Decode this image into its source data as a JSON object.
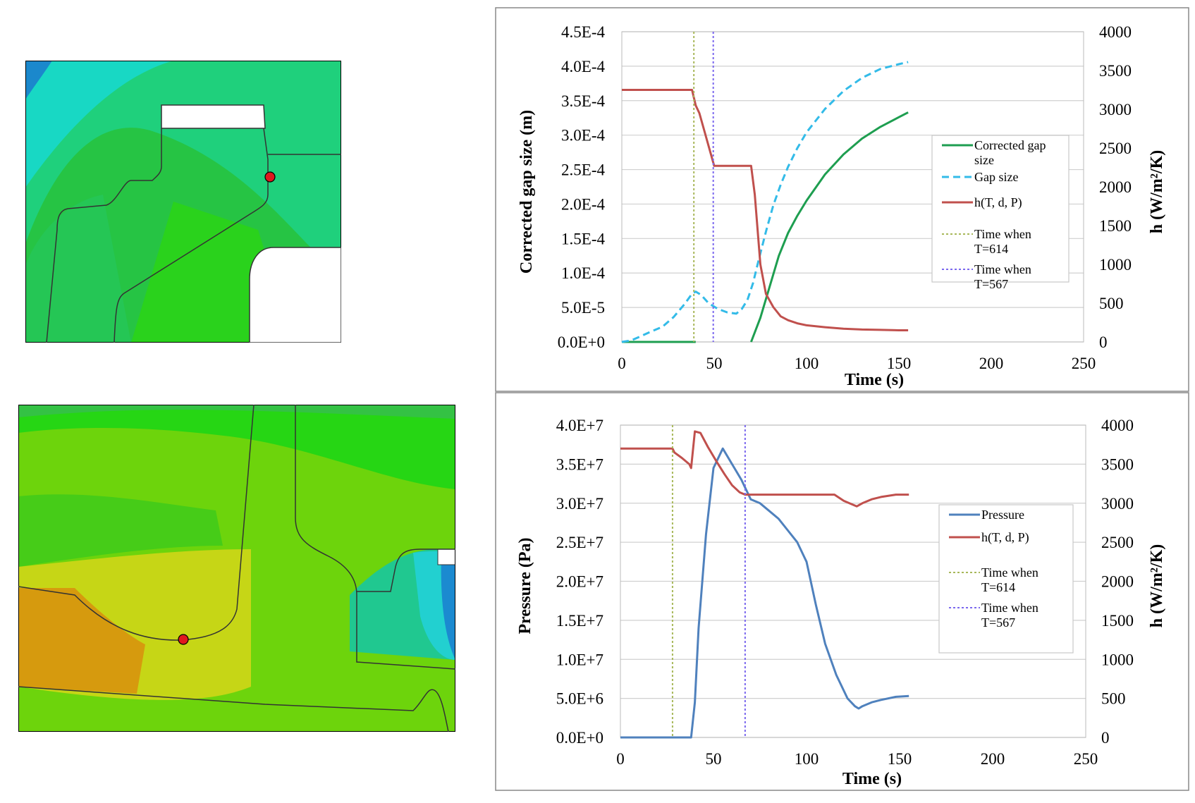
{
  "colors": {
    "gap_corrected": "#1e9e50",
    "gap_size": "#33bbe8",
    "h_curve": "#c0504d",
    "pressure": "#4f81bd",
    "vline_614": "#a8b85a",
    "vline_567": "#7b68ee",
    "marker": "#e0181e"
  },
  "chart_data": [
    {
      "type": "line",
      "xlabel": "Time (s)",
      "ylabel": "Corrected gap size (m)",
      "y2label": "h (W/m²/K)",
      "xlim": [
        0,
        250
      ],
      "ylim": [
        0,
        0.00045
      ],
      "y2lim": [
        0,
        4000
      ],
      "xticks": [
        "0",
        "50",
        "100",
        "150",
        "200",
        "250"
      ],
      "yticks": [
        "0.0E+0",
        "5.0E-5",
        "1.0E-4",
        "1.5E-4",
        "2.0E-4",
        "2.5E-4",
        "3.0E-4",
        "3.5E-4",
        "4.0E-4",
        "4.5E-4"
      ],
      "y2ticks": [
        "0",
        "500",
        "1000",
        "1500",
        "2000",
        "2500",
        "3000",
        "3500",
        "4000"
      ],
      "grid": true,
      "legend_position": "right",
      "series": [
        {
          "name": "Corrected gap size",
          "label_lines": [
            "Corrected gap",
            "size"
          ],
          "axis": "left",
          "style": "solid",
          "color_key": "gap_corrected",
          "x": [
            0,
            40,
            40,
            70,
            70,
            75,
            80,
            85,
            90,
            95,
            100,
            110,
            120,
            130,
            140,
            150,
            155
          ],
          "y": [
            0,
            0,
            null,
            null,
            0,
            3.5e-05,
            8e-05,
            0.000125,
            0.000158,
            0.000183,
            0.000205,
            0.000243,
            0.000272,
            0.000295,
            0.000312,
            0.000326,
            0.000333
          ]
        },
        {
          "name": "Gap size",
          "label_lines": [
            "Gap size"
          ],
          "axis": "left",
          "style": "dashed",
          "color_key": "gap_size",
          "x": [
            0,
            5,
            10,
            15,
            22,
            28,
            34,
            38,
            40,
            43,
            47,
            52,
            57,
            62,
            65,
            68,
            71,
            74,
            78,
            82,
            86,
            90,
            95,
            100,
            110,
            120,
            130,
            140,
            150,
            155
          ],
          "y": [
            0,
            2e-06,
            8e-06,
            1.4e-05,
            2.2e-05,
            3.6e-05,
            5.5e-05,
            7e-05,
            7.3e-05,
            6.8e-05,
            5.6e-05,
            4.8e-05,
            4.3e-05,
            4.1e-05,
            4.8e-05,
            6.1e-05,
            8.5e-05,
            0.000118,
            0.00016,
            0.000198,
            0.000228,
            0.000254,
            0.000281,
            0.000304,
            0.000338,
            0.000364,
            0.000383,
            0.000396,
            0.000403,
            0.000406
          ]
        },
        {
          "name": "h(T, d, P)",
          "label_lines": [
            "h(T, d, P)"
          ],
          "axis": "right",
          "style": "solid",
          "color_key": "h_curve",
          "x": [
            0,
            38,
            40,
            42,
            50,
            70,
            72,
            75,
            78,
            82,
            86,
            90,
            95,
            100,
            110,
            120,
            130,
            140,
            150,
            155
          ],
          "y": [
            3250,
            3250,
            3050,
            2950,
            2270,
            2270,
            1900,
            1000,
            620,
            450,
            330,
            280,
            240,
            215,
            190,
            170,
            160,
            155,
            150,
            150
          ]
        },
        {
          "name": "Time when T=614",
          "label_lines": [
            "Time when",
            "T=614"
          ],
          "axis": "left",
          "style": "dotted",
          "color_key": "vline_614",
          "vline_x": 39
        },
        {
          "name": "Time when T=567",
          "label_lines": [
            "Time when",
            "T=567"
          ],
          "axis": "left",
          "style": "dotted",
          "color_key": "vline_567",
          "vline_x": 49.5
        }
      ]
    },
    {
      "type": "line",
      "xlabel": "Time (s)",
      "ylabel": "Pressure (Pa)",
      "y2label": "h (W/m²/K)",
      "xlim": [
        0,
        250
      ],
      "ylim": [
        0,
        40000000
      ],
      "y2lim": [
        0,
        4000
      ],
      "xticks": [
        "0",
        "50",
        "100",
        "150",
        "200",
        "250"
      ],
      "yticks": [
        "0.0E+0",
        "5.0E+6",
        "1.0E+7",
        "1.5E+7",
        "2.0E+7",
        "2.5E+7",
        "3.0E+7",
        "3.5E+7",
        "4.0E+7"
      ],
      "y2ticks": [
        "0",
        "500",
        "1000",
        "1500",
        "2000",
        "2500",
        "3000",
        "3500",
        "4000"
      ],
      "grid": true,
      "legend_position": "right",
      "series": [
        {
          "name": "Pressure",
          "label_lines": [
            "Pressure"
          ],
          "axis": "left",
          "style": "solid",
          "color_key": "pressure",
          "x": [
            0,
            38,
            40,
            42,
            46,
            50,
            55,
            60,
            65,
            70,
            75,
            80,
            85,
            90,
            95,
            100,
            105,
            110,
            116,
            122,
            126,
            128,
            130,
            135,
            140,
            148,
            155
          ],
          "y": [
            0,
            0,
            4500000,
            14000000,
            26000000,
            34500000,
            37000000,
            35000000,
            33000000,
            30500000,
            30000000,
            29000000,
            28000000,
            26500000,
            25000000,
            22500000,
            17000000,
            12000000,
            8000000,
            5000000,
            4000000,
            3700000,
            4000000,
            4500000,
            4800000,
            5200000,
            5300000
          ]
        },
        {
          "name": "h(T, d, P)",
          "label_lines": [
            "h(T, d, P)"
          ],
          "axis": "right",
          "style": "solid",
          "color_key": "h_curve",
          "x": [
            0,
            28,
            29,
            33,
            37,
            38,
            40,
            43,
            47,
            52,
            56,
            60,
            64,
            67,
            70,
            100,
            110,
            115,
            120,
            127,
            130,
            135,
            140,
            148,
            155
          ],
          "y": [
            3700,
            3700,
            3650,
            3580,
            3500,
            3450,
            3920,
            3900,
            3720,
            3520,
            3370,
            3230,
            3140,
            3110,
            3110,
            3110,
            3110,
            3110,
            3030,
            2960,
            3000,
            3050,
            3080,
            3110,
            3110
          ]
        },
        {
          "name": "Time when T=614",
          "label_lines": [
            "Time when",
            "T=614"
          ],
          "axis": "left",
          "style": "dotted",
          "color_key": "vline_614",
          "vline_x": 28
        },
        {
          "name": "Time when T=567",
          "label_lines": [
            "Time when",
            "T=567"
          ],
          "axis": "left",
          "style": "dotted",
          "color_key": "vline_567",
          "vline_x": 67
        }
      ]
    }
  ]
}
